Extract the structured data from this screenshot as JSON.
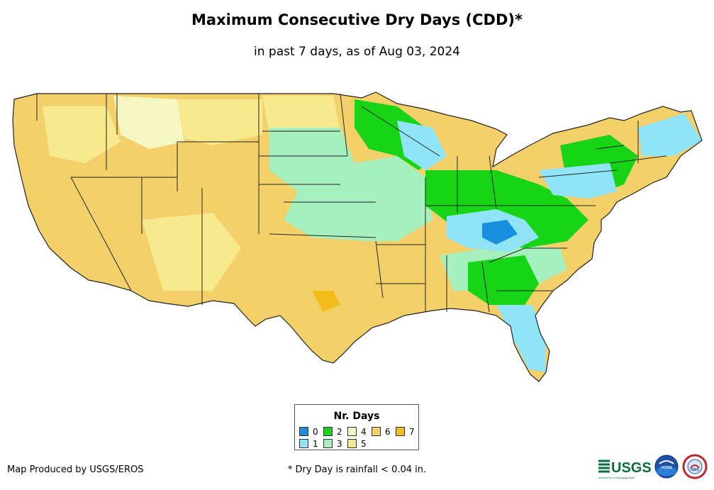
{
  "header": {
    "title": "Maximum Consecutive Dry Days (CDD)*",
    "subtitle": "in past 7 days, as of Aug 03, 2024"
  },
  "legend": {
    "title": "Nr. Days",
    "items": [
      {
        "label": "0",
        "color": "#1a8fe0"
      },
      {
        "label": "1",
        "color": "#8fe4f7"
      },
      {
        "label": "2",
        "color": "#17d417"
      },
      {
        "label": "3",
        "color": "#a6f0bf"
      },
      {
        "label": "4",
        "color": "#f4f7c2"
      },
      {
        "label": "5",
        "color": "#f6e98e"
      },
      {
        "label": "6",
        "color": "#f4d06a"
      },
      {
        "label": "7",
        "color": "#f3be1b"
      }
    ]
  },
  "footer": {
    "credit": "Map Produced by USGS/EROS",
    "footnote": "* Dry Day is rainfall < 0.04 in."
  },
  "logos": {
    "usgs": "USGS",
    "usgs_tagline": "science for a changing world",
    "noaa": "noaa",
    "nws": "NWS"
  }
}
